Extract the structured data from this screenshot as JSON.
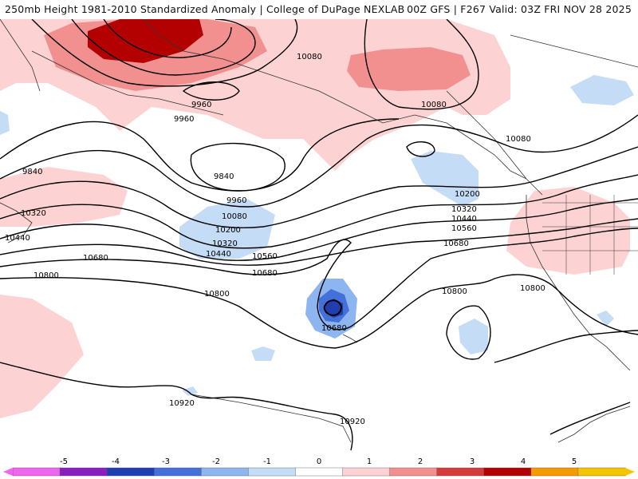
{
  "header": {
    "left_title": "250mb Height 1981-2010 Standardized Anomaly | College of DuPage NEXLAB",
    "right_title": "00Z GFS | F267 Valid: 03Z FRI NOV 28 2025"
  },
  "colors": {
    "ocean_bg": "#ffffff",
    "pos1": "#fdd2d2",
    "pos2": "#f29090",
    "pos3": "#d43c3c",
    "pos4": "#b30000",
    "neg1": "#c5dcf7",
    "neg2": "#8db5ef",
    "neg3": "#4470d9",
    "neg4": "#1f3fb0",
    "contour": "#000000",
    "coast": "#333333"
  },
  "contour_labels": [
    {
      "text": "10080",
      "name": "label-10080-north"
    },
    {
      "text": "9960",
      "name": "label-9960-a"
    },
    {
      "text": "9960",
      "name": "label-9960-b"
    },
    {
      "text": "10080",
      "name": "label-10080-gulf-alaska"
    },
    {
      "text": "10080",
      "name": "label-10080-bc"
    },
    {
      "text": "9840",
      "name": "label-9840-west"
    },
    {
      "text": "9840",
      "name": "label-9840-center"
    },
    {
      "text": "9960",
      "name": "label-9960-c"
    },
    {
      "text": "10080",
      "name": "label-10080-c"
    },
    {
      "text": "10200",
      "name": "label-10200-c"
    },
    {
      "text": "10320",
      "name": "label-10320-c"
    },
    {
      "text": "10440",
      "name": "label-10440-c"
    },
    {
      "text": "10560",
      "name": "label-10560-c"
    },
    {
      "text": "10680",
      "name": "label-10680-c"
    },
    {
      "text": "10200",
      "name": "label-10200-east"
    },
    {
      "text": "10320",
      "name": "label-10320-east"
    },
    {
      "text": "10440",
      "name": "label-10440-east"
    },
    {
      "text": "10560",
      "name": "label-10560-east"
    },
    {
      "text": "10680",
      "name": "label-10680-east"
    },
    {
      "text": "10320",
      "name": "label-10320-west"
    },
    {
      "text": "10440",
      "name": "label-10440-west"
    },
    {
      "text": "10680",
      "name": "label-10680-west"
    },
    {
      "text": "10800",
      "name": "label-10800-west"
    },
    {
      "text": "10800",
      "name": "label-10800-center"
    },
    {
      "text": "10680",
      "name": "label-10680-cutoff"
    },
    {
      "text": "10800",
      "name": "label-10800-east-a"
    },
    {
      "text": "10800",
      "name": "label-10800-east-b"
    },
    {
      "text": "10920",
      "name": "label-10920-a"
    },
    {
      "text": "10920",
      "name": "label-10920-b"
    }
  ],
  "colorbar": {
    "ticks": [
      "-5",
      "-4",
      "-3",
      "-2",
      "-1",
      "0",
      "1",
      "2",
      "3",
      "4",
      "5"
    ],
    "colors": [
      "#ee66ee",
      "#8a1fbf",
      "#1f3fb0",
      "#4470d9",
      "#8db5ef",
      "#c5dcf7",
      "#ffffff",
      "#fdd2d2",
      "#f29090",
      "#d43c3c",
      "#b30000",
      "#f59a00",
      "#f5c400"
    ]
  }
}
